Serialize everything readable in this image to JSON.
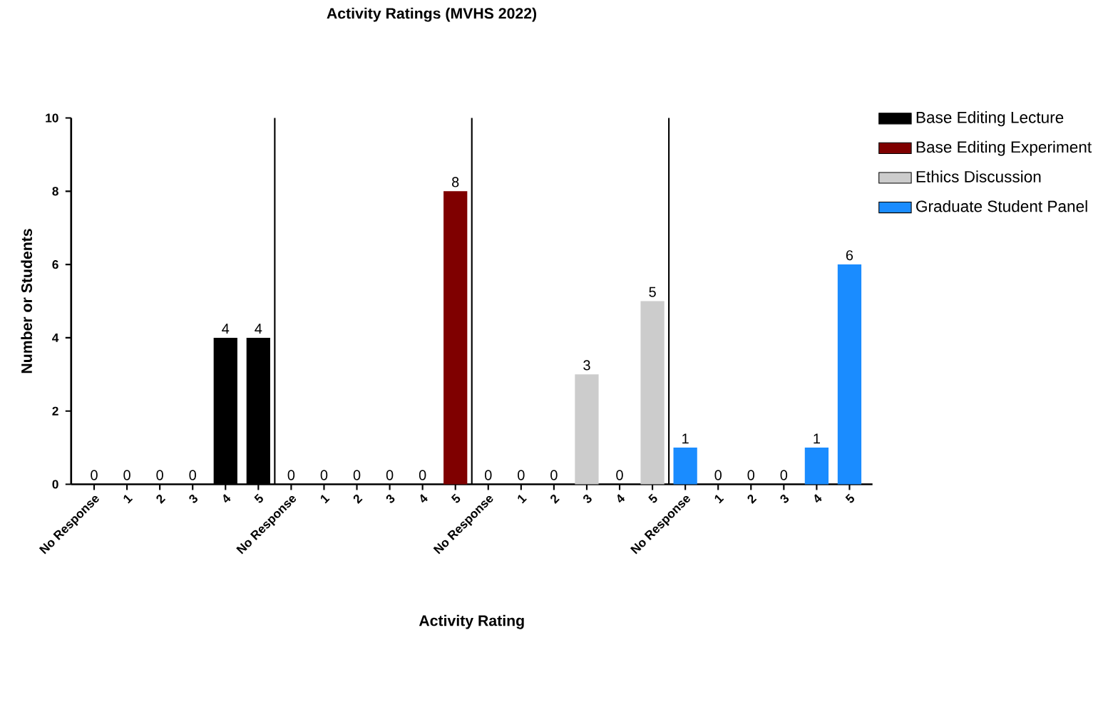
{
  "chart_data": {
    "type": "bar",
    "title": "Activity Ratings (MVHS 2022)",
    "xlabel": "Activity Rating",
    "ylabel": "Number or Students",
    "categories": [
      "No Response",
      "1",
      "2",
      "3",
      "4",
      "5",
      "No Response",
      "1",
      "2",
      "3",
      "4",
      "5",
      "No Response",
      "1",
      "2",
      "3",
      "4",
      "5",
      "No Response",
      "1",
      "2",
      "3",
      "4",
      "5"
    ],
    "series": [
      {
        "name": "Base Editing Lecture",
        "color": "#000000",
        "values": [
          0,
          0,
          0,
          0,
          4,
          4,
          null,
          null,
          null,
          null,
          null,
          null,
          null,
          null,
          null,
          null,
          null,
          null,
          null,
          null,
          null,
          null,
          null,
          null
        ]
      },
      {
        "name": "Base Editing Experiment",
        "color": "#7f0000",
        "values": [
          null,
          null,
          null,
          null,
          null,
          null,
          0,
          0,
          0,
          0,
          0,
          8,
          null,
          null,
          null,
          null,
          null,
          null,
          null,
          null,
          null,
          null,
          null,
          null
        ]
      },
      {
        "name": "Ethics Discussion",
        "color": "#cccccc",
        "values": [
          null,
          null,
          null,
          null,
          null,
          null,
          null,
          null,
          null,
          null,
          null,
          null,
          0,
          0,
          0,
          3,
          0,
          5,
          null,
          null,
          null,
          null,
          null,
          null
        ]
      },
      {
        "name": "Graduate Student Panel",
        "color": "#1a8cff",
        "values": [
          null,
          null,
          null,
          null,
          null,
          null,
          null,
          null,
          null,
          null,
          null,
          null,
          null,
          null,
          null,
          null,
          null,
          null,
          1,
          0,
          0,
          0,
          1,
          6
        ]
      }
    ],
    "ylim": [
      0,
      10
    ],
    "yticks": [
      0,
      2,
      4,
      6,
      8,
      10
    ],
    "data_labels": true,
    "legend": "right",
    "grid": false
  }
}
